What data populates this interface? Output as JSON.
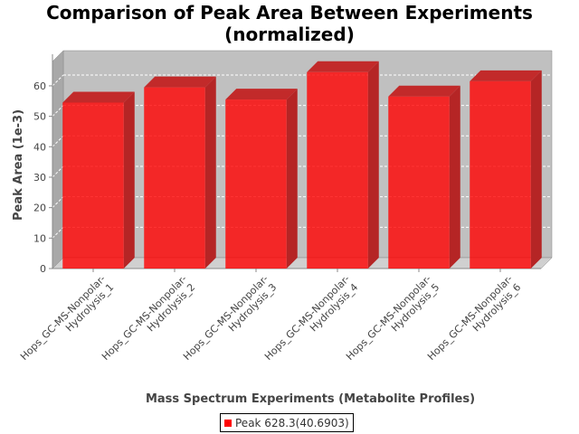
{
  "chart_data": {
    "type": "bar",
    "title_line1": "Comparison of Peak Area Between Experiments",
    "title_line2": "(normalized)",
    "xlabel": "Mass Spectrum Experiments (Metabolite Profiles)",
    "ylabel": "Peak Area (1e-3)",
    "ylim": [
      0,
      68
    ],
    "yticks": [
      0,
      10,
      20,
      30,
      40,
      50,
      60
    ],
    "categories": [
      [
        "Hops_GC-MS-Nonpolar-",
        "Hydrolysis_1"
      ],
      [
        "Hops_GC-MS-Nonpolar-",
        "Hydrolysis_2"
      ],
      [
        "Hops_GC-MS-Nonpolar-",
        "Hydrolysis_3"
      ],
      [
        "Hops_GC-MS-Nonpolar-",
        "Hydrolysis_4"
      ],
      [
        "Hops_GC-MS-Nonpolar-",
        "Hydrolysis_5"
      ],
      [
        "Hops_GC-MS-Nonpolar-",
        "Hydrolysis_6"
      ]
    ],
    "series": [
      {
        "name": "Peak 628.3(40.6903)",
        "values": [
          54.5,
          59.5,
          55.5,
          64.5,
          56.5,
          61.5
        ]
      }
    ],
    "colors": {
      "bar": "#ff0000",
      "plot_background": "#c0c0c0",
      "grid": "#ffffff"
    },
    "grid": true,
    "legend_position": "bottom-center"
  }
}
